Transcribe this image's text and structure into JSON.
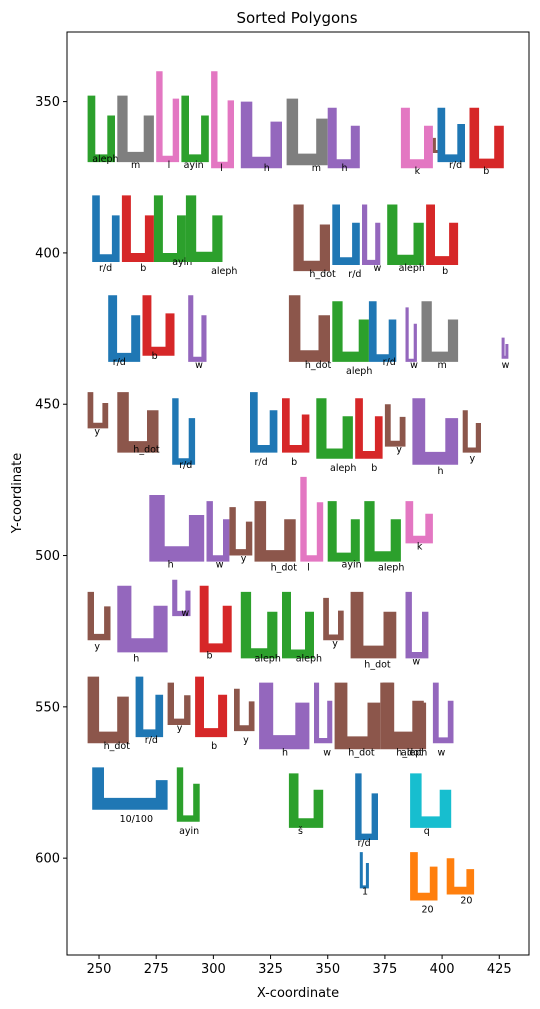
{
  "chart_data": {
    "type": "scatter",
    "title": "Sorted Polygons",
    "xlabel": "X-coordinate",
    "ylabel": "Y-coordinate",
    "xlim": [
      236,
      438
    ],
    "ylim": [
      632,
      327
    ],
    "x_ticks": [
      250,
      275,
      300,
      325,
      350,
      375,
      400,
      425
    ],
    "y_ticks": [
      350,
      400,
      450,
      500,
      550,
      600
    ],
    "grid": false,
    "colors": {
      "blue": "#1f77b4",
      "orange": "#ff7f0e",
      "green": "#2ca02c",
      "red": "#d62728",
      "purple": "#9467bd",
      "brown": "#8c564b",
      "pink": "#e377c2",
      "gray": "#7f7f7f",
      "cyan": "#17becf"
    },
    "polygons": [
      {
        "label": "aleph",
        "color": "green",
        "x": 245,
        "y": 348,
        "w": 12,
        "h": 22,
        "lx": 247,
        "ly": 370
      },
      {
        "label": "m",
        "color": "gray",
        "x": 258,
        "y": 348,
        "w": 16,
        "h": 22,
        "lx": 264,
        "ly": 372
      },
      {
        "label": "l",
        "color": "pink",
        "x": 275,
        "y": 340,
        "w": 10,
        "h": 30,
        "lx": 280,
        "ly": 372
      },
      {
        "label": "ayin",
        "color": "green",
        "x": 286,
        "y": 348,
        "w": 12,
        "h": 22,
        "lx": 287,
        "ly": 372
      },
      {
        "label": "l",
        "color": "pink",
        "x": 299,
        "y": 340,
        "w": 10,
        "h": 32,
        "lx": 303,
        "ly": 373
      },
      {
        "label": "h",
        "color": "purple",
        "x": 312,
        "y": 350,
        "w": 18,
        "h": 22,
        "lx": 322,
        "ly": 373
      },
      {
        "label": "m",
        "color": "gray",
        "x": 332,
        "y": 349,
        "w": 18,
        "h": 22,
        "lx": 343,
        "ly": 373
      },
      {
        "label": "h",
        "color": "purple",
        "x": 350,
        "y": 352,
        "w": 14,
        "h": 20,
        "lx": 356,
        "ly": 373
      },
      {
        "label": "k",
        "color": "pink",
        "x": 382,
        "y": 352,
        "w": 14,
        "h": 20,
        "lx": 388,
        "ly": 374
      },
      {
        "label": "y",
        "color": "brown",
        "x": 396,
        "y": 362,
        "w": 4,
        "h": 5,
        "lx": 399,
        "ly": 369
      },
      {
        "label": "r/d",
        "color": "blue",
        "x": 398,
        "y": 352,
        "w": 12,
        "h": 18,
        "lx": 403,
        "ly": 372
      },
      {
        "label": "b",
        "color": "red",
        "x": 412,
        "y": 352,
        "w": 15,
        "h": 20,
        "lx": 418,
        "ly": 374
      },
      {
        "label": "r/d",
        "color": "blue",
        "x": 247,
        "y": 381,
        "w": 12,
        "h": 22,
        "lx": 250,
        "ly": 406
      },
      {
        "label": "b",
        "color": "red",
        "x": 260,
        "y": 381,
        "w": 14,
        "h": 22,
        "lx": 268,
        "ly": 406
      },
      {
        "label": "ayin",
        "color": "green",
        "x": 274,
        "y": 381,
        "w": 14,
        "h": 22,
        "lx": 282,
        "ly": 404
      },
      {
        "label": "aleph",
        "color": "green",
        "x": 288,
        "y": 381,
        "w": 16,
        "h": 22,
        "lx": 299,
        "ly": 407
      },
      {
        "label": "h_dot",
        "color": "brown",
        "x": 335,
        "y": 384,
        "w": 16,
        "h": 22,
        "lx": 342,
        "ly": 408
      },
      {
        "label": "r/d",
        "color": "blue",
        "x": 352,
        "y": 384,
        "w": 12,
        "h": 20,
        "lx": 359,
        "ly": 408
      },
      {
        "label": "w",
        "color": "purple",
        "x": 365,
        "y": 384,
        "w": 8,
        "h": 20,
        "lx": 370,
        "ly": 406
      },
      {
        "label": "aleph",
        "color": "green",
        "x": 376,
        "y": 384,
        "w": 16,
        "h": 20,
        "lx": 381,
        "ly": 406
      },
      {
        "label": "b",
        "color": "red",
        "x": 393,
        "y": 384,
        "w": 14,
        "h": 20,
        "lx": 400,
        "ly": 407
      },
      {
        "label": "r/d",
        "color": "blue",
        "x": 254,
        "y": 414,
        "w": 14,
        "h": 22,
        "lx": 256,
        "ly": 437
      },
      {
        "label": "b",
        "color": "red",
        "x": 269,
        "y": 414,
        "w": 14,
        "h": 20,
        "lx": 273,
        "ly": 435
      },
      {
        "label": "w",
        "color": "purple",
        "x": 289,
        "y": 414,
        "w": 8,
        "h": 22,
        "lx": 292,
        "ly": 438
      },
      {
        "label": "h_dot",
        "color": "brown",
        "x": 333,
        "y": 414,
        "w": 18,
        "h": 22,
        "lx": 340,
        "ly": 438
      },
      {
        "label": "aleph",
        "color": "green",
        "x": 352,
        "y": 416,
        "w": 16,
        "h": 20,
        "lx": 358,
        "ly": 440
      },
      {
        "label": "r/d",
        "color": "blue",
        "x": 368,
        "y": 416,
        "w": 12,
        "h": 20,
        "lx": 374,
        "ly": 437
      },
      {
        "label": "w",
        "color": "purple",
        "x": 384,
        "y": 418,
        "w": 5,
        "h": 18,
        "lx": 386,
        "ly": 438
      },
      {
        "label": "m",
        "color": "gray",
        "x": 391,
        "y": 416,
        "w": 16,
        "h": 20,
        "lx": 398,
        "ly": 438
      },
      {
        "label": "w",
        "color": "purple",
        "x": 426,
        "y": 428,
        "w": 3,
        "h": 7,
        "lx": 426,
        "ly": 438
      },
      {
        "label": "y",
        "color": "brown",
        "x": 245,
        "y": 446,
        "w": 9,
        "h": 12,
        "lx": 248,
        "ly": 460
      },
      {
        "label": "h_dot",
        "color": "brown",
        "x": 258,
        "y": 446,
        "w": 18,
        "h": 20,
        "lx": 265,
        "ly": 466
      },
      {
        "label": "r/d",
        "color": "blue",
        "x": 282,
        "y": 448,
        "w": 10,
        "h": 22,
        "lx": 285,
        "ly": 471
      },
      {
        "label": "r/d",
        "color": "blue",
        "x": 316,
        "y": 446,
        "w": 12,
        "h": 20,
        "lx": 318,
        "ly": 470
      },
      {
        "label": "b",
        "color": "red",
        "x": 330,
        "y": 448,
        "w": 12,
        "h": 18,
        "lx": 334,
        "ly": 470
      },
      {
        "label": "aleph",
        "color": "green",
        "x": 345,
        "y": 448,
        "w": 16,
        "h": 20,
        "lx": 351,
        "ly": 472
      },
      {
        "label": "b",
        "color": "red",
        "x": 362,
        "y": 448,
        "w": 12,
        "h": 20,
        "lx": 369,
        "ly": 472
      },
      {
        "label": "y",
        "color": "brown",
        "x": 375,
        "y": 450,
        "w": 9,
        "h": 14,
        "lx": 380,
        "ly": 466
      },
      {
        "label": "h",
        "color": "purple",
        "x": 387,
        "y": 448,
        "w": 20,
        "h": 22,
        "lx": 398,
        "ly": 473
      },
      {
        "label": "y",
        "color": "brown",
        "x": 409,
        "y": 452,
        "w": 8,
        "h": 14,
        "lx": 412,
        "ly": 469
      },
      {
        "label": "h",
        "color": "purple",
        "x": 272,
        "y": 480,
        "w": 24,
        "h": 22,
        "lx": 280,
        "ly": 504
      },
      {
        "label": "w",
        "color": "purple",
        "x": 297,
        "y": 482,
        "w": 10,
        "h": 20,
        "lx": 301,
        "ly": 504
      },
      {
        "label": "y",
        "color": "brown",
        "x": 307,
        "y": 484,
        "w": 10,
        "h": 16,
        "lx": 312,
        "ly": 502
      },
      {
        "label": "h_dot",
        "color": "brown",
        "x": 318,
        "y": 482,
        "w": 18,
        "h": 20,
        "lx": 325,
        "ly": 505
      },
      {
        "label": "l",
        "color": "pink",
        "x": 338,
        "y": 474,
        "w": 10,
        "h": 28,
        "lx": 341,
        "ly": 505
      },
      {
        "label": "ayin",
        "color": "green",
        "x": 350,
        "y": 482,
        "w": 14,
        "h": 20,
        "lx": 356,
        "ly": 504
      },
      {
        "label": "aleph",
        "color": "green",
        "x": 366,
        "y": 482,
        "w": 16,
        "h": 20,
        "lx": 372,
        "ly": 505
      },
      {
        "label": "k",
        "color": "pink",
        "x": 384,
        "y": 482,
        "w": 12,
        "h": 14,
        "lx": 389,
        "ly": 498
      },
      {
        "label": "y",
        "color": "brown",
        "x": 245,
        "y": 512,
        "w": 10,
        "h": 16,
        "lx": 248,
        "ly": 531
      },
      {
        "label": "h",
        "color": "purple",
        "x": 258,
        "y": 510,
        "w": 22,
        "h": 22,
        "lx": 265,
        "ly": 535
      },
      {
        "label": "w",
        "color": "purple",
        "x": 282,
        "y": 508,
        "w": 8,
        "h": 12,
        "lx": 286,
        "ly": 520
      },
      {
        "label": "b",
        "color": "red",
        "x": 294,
        "y": 510,
        "w": 14,
        "h": 22,
        "lx": 297,
        "ly": 534
      },
      {
        "label": "aleph",
        "color": "green",
        "x": 312,
        "y": 512,
        "w": 16,
        "h": 22,
        "lx": 318,
        "ly": 535
      },
      {
        "label": "aleph",
        "color": "green",
        "x": 330,
        "y": 512,
        "w": 14,
        "h": 22,
        "lx": 336,
        "ly": 535
      },
      {
        "label": "y",
        "color": "brown",
        "x": 348,
        "y": 514,
        "w": 9,
        "h": 14,
        "lx": 352,
        "ly": 530
      },
      {
        "label": "h_dot",
        "color": "brown",
        "x": 360,
        "y": 512,
        "w": 20,
        "h": 22,
        "lx": 366,
        "ly": 537
      },
      {
        "label": "w",
        "color": "purple",
        "x": 384,
        "y": 512,
        "w": 10,
        "h": 22,
        "lx": 387,
        "ly": 536
      },
      {
        "label": "h_dot",
        "color": "brown",
        "x": 245,
        "y": 540,
        "w": 18,
        "h": 22,
        "lx": 252,
        "ly": 564
      },
      {
        "label": "r/d",
        "color": "blue",
        "x": 266,
        "y": 540,
        "w": 12,
        "h": 20,
        "lx": 270,
        "ly": 562
      },
      {
        "label": "y",
        "color": "brown",
        "x": 280,
        "y": 542,
        "w": 10,
        "h": 14,
        "lx": 284,
        "ly": 558
      },
      {
        "label": "b",
        "color": "red",
        "x": 292,
        "y": 540,
        "w": 14,
        "h": 20,
        "lx": 299,
        "ly": 564
      },
      {
        "label": "y",
        "color": "brown",
        "x": 309,
        "y": 544,
        "w": 9,
        "h": 14,
        "lx": 313,
        "ly": 562
      },
      {
        "label": "h",
        "color": "purple",
        "x": 320,
        "y": 542,
        "w": 22,
        "h": 22,
        "lx": 330,
        "ly": 566
      },
      {
        "label": "w",
        "color": "purple",
        "x": 344,
        "y": 542,
        "w": 8,
        "h": 20,
        "lx": 348,
        "ly": 566
      },
      {
        "label": "h_dot",
        "color": "brown",
        "x": 353,
        "y": 542,
        "w": 20,
        "h": 22,
        "lx": 359,
        "ly": 566
      },
      {
        "label": "h_dot",
        "color": "brown",
        "x": 373,
        "y": 542,
        "w": 20,
        "h": 22,
        "lx": 380,
        "ly": 566
      },
      {
        "label": "aleph",
        "color": "brown",
        "x": 374,
        "y": 542,
        "w": 18,
        "h": 20,
        "lx": 382,
        "ly": 566
      },
      {
        "label": "w",
        "color": "purple",
        "x": 396,
        "y": 542,
        "w": 9,
        "h": 20,
        "lx": 398,
        "ly": 566
      },
      {
        "label": "10/100",
        "color": "blue",
        "x": 247,
        "y": 570,
        "w": 33,
        "h": 14,
        "lx": 259,
        "ly": 588
      },
      {
        "label": "ayin",
        "color": "green",
        "x": 284,
        "y": 570,
        "w": 10,
        "h": 18,
        "lx": 285,
        "ly": 592
      },
      {
        "label": "š",
        "color": "green",
        "x": 333,
        "y": 572,
        "w": 15,
        "h": 18,
        "lx": 337,
        "ly": 592
      },
      {
        "label": "r/d",
        "color": "blue",
        "x": 362,
        "y": 572,
        "w": 10,
        "h": 22,
        "lx": 363,
        "ly": 596
      },
      {
        "label": "q",
        "color": "cyan",
        "x": 386,
        "y": 572,
        "w": 18,
        "h": 18,
        "lx": 392,
        "ly": 592
      },
      {
        "label": "1",
        "color": "blue",
        "x": 364,
        "y": 598,
        "w": 4,
        "h": 12,
        "lx": 365,
        "ly": 612
      },
      {
        "label": "20",
        "color": "orange",
        "x": 386,
        "y": 598,
        "w": 12,
        "h": 16,
        "lx": 391,
        "ly": 618
      },
      {
        "label": "20",
        "color": "orange",
        "x": 402,
        "y": 600,
        "w": 12,
        "h": 12,
        "lx": 408,
        "ly": 615
      }
    ]
  }
}
